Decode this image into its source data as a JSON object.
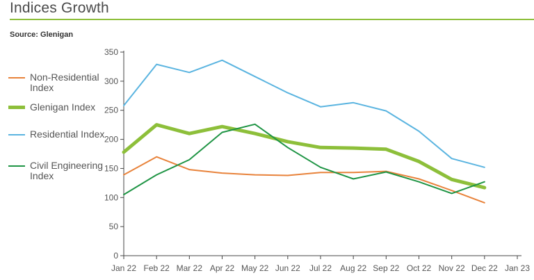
{
  "header": {
    "title": "Indices Growth",
    "source": "Source: Glenigan"
  },
  "colors": {
    "accent": "#8dbf3a",
    "axis": "#444444"
  },
  "chart_data": {
    "type": "line",
    "title": "Indices Growth",
    "xlabel": "",
    "ylabel": "",
    "x": [
      "Jan 22",
      "Feb 22",
      "Mar 22",
      "Apr 22",
      "May 22",
      "Jun 22",
      "Jul 22",
      "Aug 22",
      "Sep 22",
      "Oct 22",
      "Nov 22",
      "Dec 22",
      "Jan 23"
    ],
    "ylim": [
      0,
      350
    ],
    "yticks": [
      0,
      50,
      100,
      150,
      200,
      250,
      300,
      350
    ],
    "grid": false,
    "legend_position": "left",
    "series": [
      {
        "name": "Non-Residential Index",
        "color": "#e8823a",
        "values": [
          139,
          170,
          148,
          142,
          139,
          138,
          143,
          143,
          145,
          132,
          112,
          91,
          null
        ]
      },
      {
        "name": "Glenigan Index",
        "color": "#8dbf3a",
        "values": [
          178,
          225,
          210,
          222,
          210,
          196,
          186,
          185,
          183,
          162,
          131,
          117,
          null
        ]
      },
      {
        "name": "Residential Index",
        "color": "#5ab4e0",
        "values": [
          258,
          329,
          315,
          336,
          308,
          280,
          256,
          263,
          249,
          214,
          167,
          152,
          null
        ]
      },
      {
        "name": "Civil Engineering Index",
        "color": "#1e9444",
        "values": [
          105,
          139,
          165,
          212,
          226,
          186,
          152,
          132,
          144,
          127,
          107,
          127,
          null
        ]
      }
    ]
  }
}
